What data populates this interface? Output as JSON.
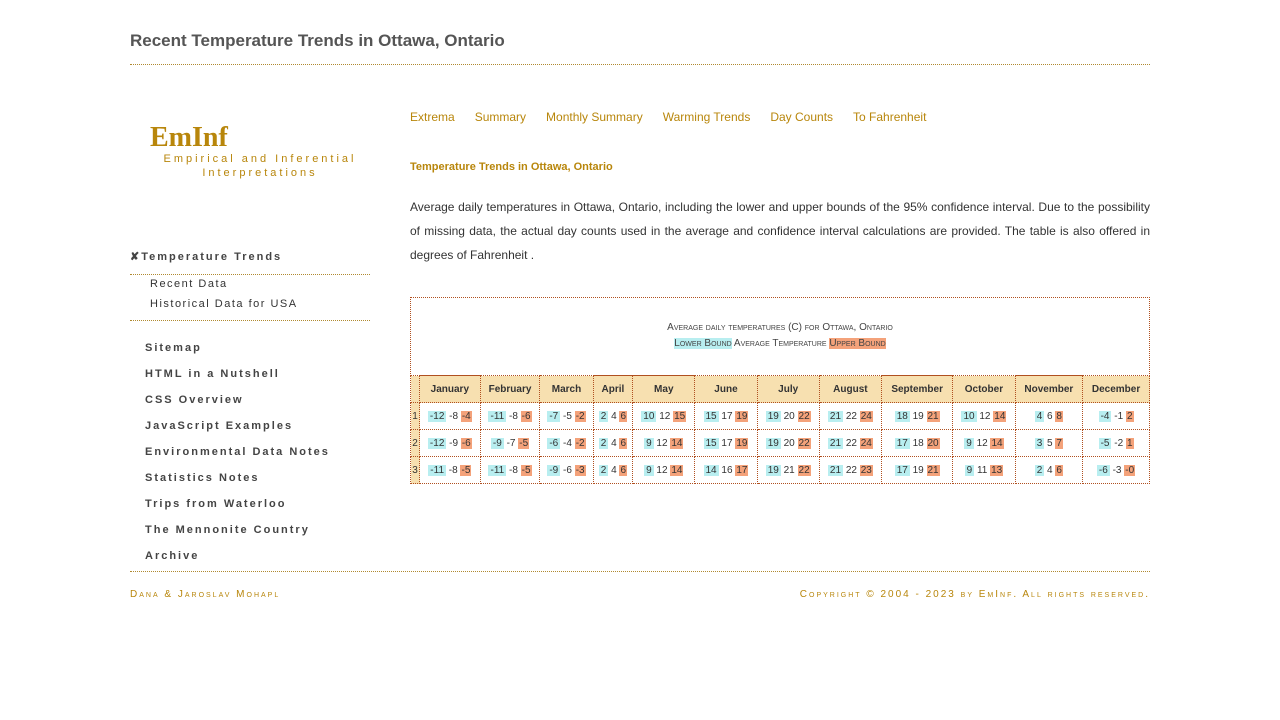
{
  "page_title": "Recent Temperature Trends in Ottawa, Ontario",
  "brand": {
    "name": "EmInf",
    "subtitle": "Empirical and Inferential Interpretations"
  },
  "sidebar": {
    "section_marker": "✘",
    "section": "Temperature Trends",
    "sub_items": [
      "Recent Data",
      "Historical Data for USA"
    ],
    "nav": [
      "Sitemap",
      "HTML in a Nutshell",
      "CSS Overview",
      "JavaScript Examples",
      "Environmental Data Notes",
      "Statistics Notes",
      "Trips from Waterloo",
      "The Mennonite Country",
      "Archive"
    ]
  },
  "topnav": [
    "Extrema",
    "Summary",
    "Monthly Summary",
    "Warming Trends",
    "Day Counts",
    "To Fahrenheit"
  ],
  "section_title": "Temperature Trends in Ottawa, Ontario",
  "intro": "Average daily temperatures in Ottawa, Ontario, including the lower and upper bounds of the 95% confidence interval. Due to the possibility of missing data, the actual day counts used in the average and confidence interval calculations are provided. The table is also offered in degrees of Fahrenheit .",
  "table": {
    "caption": "Average daily temperatures (C) for Ottawa, Ontario",
    "legend": {
      "lower": "Lower Bound",
      "avg": "Average Temperature",
      "upper": "Upper Bound"
    },
    "months": [
      "January",
      "February",
      "March",
      "April",
      "May",
      "June",
      "July",
      "August",
      "September",
      "October",
      "November",
      "December"
    ],
    "rows": [
      {
        "idx": "1",
        "cells": [
          [
            "-12",
            "-8",
            "-4"
          ],
          [
            "-11",
            "-8",
            "-6"
          ],
          [
            "-7",
            "-5",
            "-2"
          ],
          [
            "2",
            "4",
            "6"
          ],
          [
            "10",
            "12",
            "15"
          ],
          [
            "15",
            "17",
            "19"
          ],
          [
            "19",
            "20",
            "22"
          ],
          [
            "21",
            "22",
            "24"
          ],
          [
            "18",
            "19",
            "21"
          ],
          [
            "10",
            "12",
            "14"
          ],
          [
            "4",
            "6",
            "8"
          ],
          [
            "-4",
            "-1",
            "2"
          ]
        ]
      },
      {
        "idx": "2",
        "cells": [
          [
            "-12",
            "-9",
            "-6"
          ],
          [
            "-9",
            "-7",
            "-5"
          ],
          [
            "-6",
            "-4",
            "-2"
          ],
          [
            "2",
            "4",
            "6"
          ],
          [
            "9",
            "12",
            "14"
          ],
          [
            "15",
            "17",
            "19"
          ],
          [
            "19",
            "20",
            "22"
          ],
          [
            "21",
            "22",
            "24"
          ],
          [
            "17",
            "18",
            "20"
          ],
          [
            "9",
            "12",
            "14"
          ],
          [
            "3",
            "5",
            "7"
          ],
          [
            "-5",
            "-2",
            "1"
          ]
        ]
      },
      {
        "idx": "3",
        "cells": [
          [
            "-11",
            "-8",
            "-5"
          ],
          [
            "-11",
            "-8",
            "-5"
          ],
          [
            "-9",
            "-6",
            "-3"
          ],
          [
            "2",
            "4",
            "6"
          ],
          [
            "9",
            "12",
            "14"
          ],
          [
            "14",
            "16",
            "17"
          ],
          [
            "19",
            "21",
            "22"
          ],
          [
            "21",
            "22",
            "23"
          ],
          [
            "17",
            "19",
            "21"
          ],
          [
            "9",
            "11",
            "13"
          ],
          [
            "2",
            "4",
            "6"
          ],
          [
            "-6",
            "-3",
            "-0"
          ]
        ]
      }
    ]
  },
  "footer": {
    "left": "Dana & Jaroslav Mohapl",
    "right": "Copyright © 2004 - 2023 by EmInf. All rights reserved."
  },
  "colors": {
    "accent": "#b8860b",
    "lower_bound": "#b8eef0",
    "upper_bound": "#f4a27a",
    "header_bg": "#f7e0b0"
  }
}
